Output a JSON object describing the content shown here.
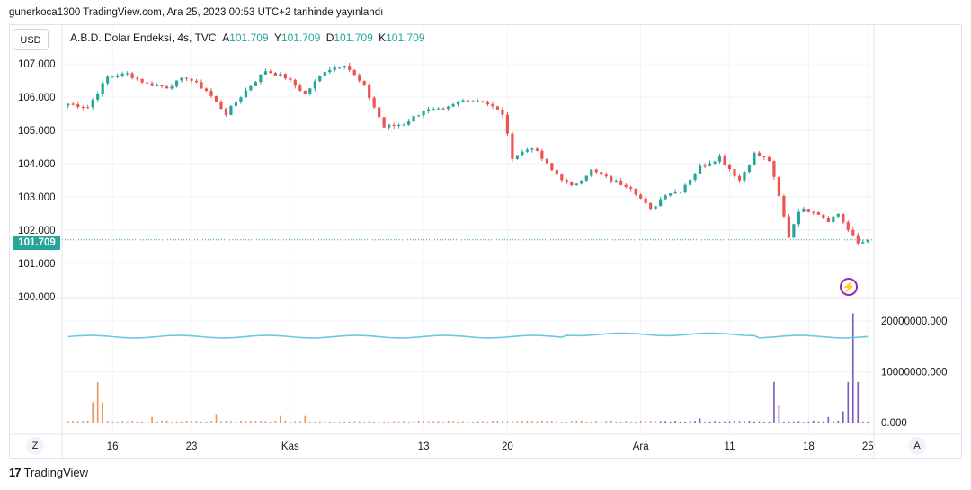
{
  "header": {
    "text": "gunerkoca1300 TradingView.com, Ara 25, 2023 00:53 UTC+2 tarihinde yayınlandı"
  },
  "currency_button": "USD",
  "legend": {
    "symbol": "A.B.D. Dolar Endeksi, 4s, TVC",
    "open_label": "A",
    "open": "101.709",
    "high_label": "Y",
    "high": "101.709",
    "low_label": "D",
    "low": "101.709",
    "close_label": "K",
    "close": "101.709"
  },
  "last_price_label": "101.709",
  "timezone_button": "Z",
  "auto_button": "A",
  "footer": {
    "brand": "TradingView",
    "logo_glyph": "17"
  },
  "icons": {
    "alert": "lightning-icon"
  },
  "colors": {
    "up": "#26a69a",
    "down": "#ef5350",
    "ma_line": "#6ec6e6",
    "volume_orange": "#e8945a",
    "volume_purple": "#7e57c2",
    "grid": "#f0f3fa"
  },
  "chart_data": [
    {
      "type": "candlestick",
      "y_ticks": [
        "107.000",
        "106.000",
        "105.000",
        "104.000",
        "103.000",
        "102.000",
        "101.000",
        "100.000"
      ],
      "ylim": [
        100.0,
        107.3
      ],
      "x_ticks": [
        "16",
        "23",
        "Kas",
        "13",
        "20",
        "Ara",
        "11",
        "18",
        "25"
      ],
      "last_price": 101.709,
      "close_path": [
        [
          0,
          105.8
        ],
        [
          4,
          105.7
        ],
        [
          8,
          106.6
        ],
        [
          12,
          106.7
        ],
        [
          16,
          106.4
        ],
        [
          20,
          106.3
        ],
        [
          24,
          106.6
        ],
        [
          28,
          106.2
        ],
        [
          32,
          105.5
        ],
        [
          36,
          106.2
        ],
        [
          40,
          106.8
        ],
        [
          44,
          106.6
        ],
        [
          48,
          106.1
        ],
        [
          52,
          106.8
        ],
        [
          56,
          107.0
        ],
        [
          60,
          106.3
        ],
        [
          64,
          105.1
        ],
        [
          68,
          105.2
        ],
        [
          72,
          105.6
        ],
        [
          76,
          105.6
        ],
        [
          80,
          105.9
        ],
        [
          84,
          105.9
        ],
        [
          88,
          105.5
        ],
        [
          90,
          104.2
        ],
        [
          94,
          104.5
        ],
        [
          98,
          103.8
        ],
        [
          102,
          103.3
        ],
        [
          106,
          103.8
        ],
        [
          110,
          103.5
        ],
        [
          114,
          103.3
        ],
        [
          118,
          102.6
        ],
        [
          121,
          103.1
        ],
        [
          124,
          103.2
        ],
        [
          128,
          103.9
        ],
        [
          132,
          104.2
        ],
        [
          136,
          103.5
        ],
        [
          139,
          104.3
        ],
        [
          142,
          104.1
        ],
        [
          144,
          103.0
        ],
        [
          146,
          101.8
        ],
        [
          148,
          102.6
        ],
        [
          151,
          102.6
        ],
        [
          154,
          102.3
        ],
        [
          156,
          102.5
        ],
        [
          158,
          102.0
        ],
        [
          160,
          101.6
        ],
        [
          162,
          101.709
        ]
      ]
    },
    {
      "type": "bar",
      "name": "volume",
      "y_ticks": [
        "20000000.000",
        "10000000.000",
        "0.000"
      ],
      "ylim": [
        0,
        23000000
      ],
      "ma_level": 16900000,
      "spikes_orange": [
        [
          5,
          4000000
        ],
        [
          6,
          8000000
        ],
        [
          7,
          4000000
        ],
        [
          17,
          1100000
        ],
        [
          30,
          1500000
        ],
        [
          43,
          1300000
        ],
        [
          48,
          1300000
        ]
      ],
      "spikes_purple": [
        [
          128,
          800000
        ],
        [
          143,
          8000000
        ],
        [
          144,
          3500000
        ],
        [
          154,
          1100000
        ],
        [
          157,
          2200000
        ],
        [
          158,
          8000000
        ],
        [
          159,
          21500000
        ],
        [
          160,
          8000000
        ]
      ]
    }
  ]
}
